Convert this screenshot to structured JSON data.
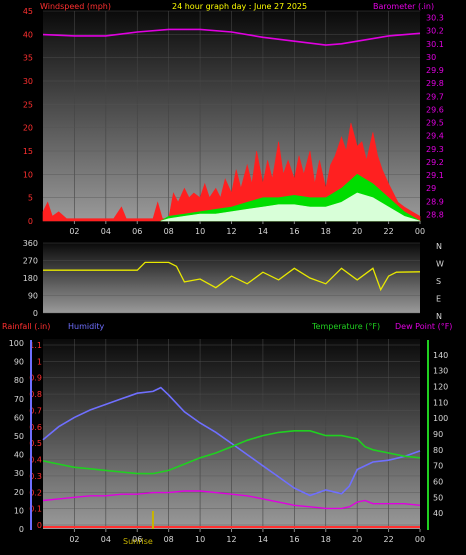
{
  "title": "24 hour graph day : June 27 2025",
  "colors": {
    "wind": "#ff2020",
    "gust": "#00dd00",
    "avg_light": "#d8ffd8",
    "barometer": "#e000e0",
    "direction": "#e8e800",
    "rain": "#ff3030",
    "humidity": "#6f6fff",
    "temperature": "#20d020",
    "dewpoint": "#e000e0",
    "tick_text": "#d8d8d8",
    "sunrise": "#c8b400"
  },
  "hour_ticks": [
    "02",
    "04",
    "06",
    "08",
    "10",
    "12",
    "14",
    "16",
    "18",
    "20",
    "22",
    "00"
  ],
  "sunrise_label": "Sunrise",
  "chart_data": [
    {
      "type": "area",
      "name": "wind-baro",
      "left_label": "Windspeed (mph)",
      "right_label": "Barometer (.in)",
      "left_ticks": [
        "0",
        "5",
        "10",
        "15",
        "20",
        "25",
        "30",
        "35",
        "40",
        "45"
      ],
      "right_ticks": [
        "28.8",
        "28.9",
        "29",
        "29.1",
        "29.2",
        "29.3",
        "29.4",
        "29.5",
        "29.6",
        "29.7",
        "29.8",
        "29.9",
        "30",
        "30.1",
        "30.2",
        "30.3"
      ],
      "ylim_left": [
        0,
        45
      ],
      "ylim_right": [
        28.75,
        30.35
      ],
      "xlim_hours": [
        0,
        24
      ],
      "wind_points": [
        [
          0,
          2
        ],
        [
          0.3,
          4
        ],
        [
          0.6,
          1
        ],
        [
          1,
          2
        ],
        [
          1.5,
          0.5
        ],
        [
          2,
          0.5
        ],
        [
          2.5,
          0.5
        ],
        [
          3,
          0.5
        ],
        [
          3.5,
          0.5
        ],
        [
          4,
          0.5
        ],
        [
          4.5,
          0.5
        ],
        [
          5,
          3
        ],
        [
          5.3,
          0.5
        ],
        [
          6,
          0.5
        ],
        [
          6.5,
          0.5
        ],
        [
          7,
          0.5
        ],
        [
          7.3,
          4
        ],
        [
          7.6,
          0.5
        ],
        [
          8,
          0.5
        ],
        [
          8.3,
          6
        ],
        [
          8.6,
          4
        ],
        [
          9,
          7
        ],
        [
          9.3,
          5
        ],
        [
          9.6,
          6
        ],
        [
          10,
          5
        ],
        [
          10.3,
          8
        ],
        [
          10.6,
          5
        ],
        [
          11,
          7
        ],
        [
          11.3,
          5
        ],
        [
          11.6,
          9
        ],
        [
          12,
          6
        ],
        [
          12.3,
          11
        ],
        [
          12.6,
          7
        ],
        [
          13,
          12
        ],
        [
          13.3,
          8
        ],
        [
          13.6,
          15
        ],
        [
          14,
          8
        ],
        [
          14.3,
          13
        ],
        [
          14.6,
          9
        ],
        [
          15,
          17
        ],
        [
          15.3,
          10
        ],
        [
          15.6,
          13
        ],
        [
          16,
          9
        ],
        [
          16.3,
          14
        ],
        [
          16.6,
          10
        ],
        [
          17,
          15
        ],
        [
          17.3,
          8
        ],
        [
          17.6,
          13
        ],
        [
          18,
          7
        ],
        [
          18.3,
          12
        ],
        [
          18.6,
          14
        ],
        [
          19,
          18
        ],
        [
          19.3,
          15
        ],
        [
          19.6,
          21
        ],
        [
          20,
          16
        ],
        [
          20.3,
          17
        ],
        [
          20.6,
          13
        ],
        [
          21,
          19
        ],
        [
          21.3,
          14
        ],
        [
          21.6,
          11
        ],
        [
          22,
          8
        ],
        [
          22.3,
          6
        ],
        [
          22.6,
          4
        ],
        [
          23,
          3
        ],
        [
          23.5,
          2
        ],
        [
          24,
          1
        ]
      ],
      "gust_points": [
        [
          7.5,
          0
        ],
        [
          8,
          1
        ],
        [
          9,
          1.5
        ],
        [
          10,
          2
        ],
        [
          11,
          2.5
        ],
        [
          12,
          3
        ],
        [
          13,
          4
        ],
        [
          14,
          5
        ],
        [
          15,
          5
        ],
        [
          16,
          5.5
        ],
        [
          17,
          5
        ],
        [
          18,
          5
        ],
        [
          19,
          7
        ],
        [
          20,
          10
        ],
        [
          20.5,
          9
        ],
        [
          21,
          8
        ],
        [
          22,
          5
        ],
        [
          23,
          2
        ],
        [
          24,
          0
        ]
      ],
      "avg_points": [
        [
          7.5,
          0
        ],
        [
          8,
          0.5
        ],
        [
          9,
          1
        ],
        [
          10,
          1.5
        ],
        [
          11,
          1.5
        ],
        [
          12,
          2
        ],
        [
          13,
          2.5
        ],
        [
          14,
          3
        ],
        [
          15,
          3.5
        ],
        [
          16,
          3.5
        ],
        [
          17,
          3
        ],
        [
          18,
          3
        ],
        [
          19,
          4
        ],
        [
          20,
          6
        ],
        [
          21,
          5
        ],
        [
          22,
          3
        ],
        [
          23,
          1
        ],
        [
          24,
          0
        ]
      ],
      "baro_points": [
        [
          0,
          30.17
        ],
        [
          2,
          30.16
        ],
        [
          4,
          30.16
        ],
        [
          6,
          30.19
        ],
        [
          8,
          30.21
        ],
        [
          10,
          30.21
        ],
        [
          12,
          30.19
        ],
        [
          14,
          30.15
        ],
        [
          16,
          30.12
        ],
        [
          18,
          30.09
        ],
        [
          19,
          30.1
        ],
        [
          20,
          30.12
        ],
        [
          22,
          30.16
        ],
        [
          24,
          30.18
        ]
      ]
    },
    {
      "type": "line",
      "name": "wind-direction",
      "left_ticks": [
        "0",
        "90",
        "180",
        "270",
        "360"
      ],
      "right_ticks": [
        "N",
        "W",
        "S",
        "E",
        "N"
      ],
      "ylim": [
        0,
        360
      ],
      "dir_points": [
        [
          0,
          220
        ],
        [
          6,
          220
        ],
        [
          6.5,
          260
        ],
        [
          8,
          260
        ],
        [
          8.5,
          240
        ],
        [
          9,
          160
        ],
        [
          10,
          175
        ],
        [
          11,
          130
        ],
        [
          12,
          190
        ],
        [
          13,
          150
        ],
        [
          14,
          210
        ],
        [
          15,
          170
        ],
        [
          16,
          230
        ],
        [
          17,
          180
        ],
        [
          18,
          150
        ],
        [
          19,
          230
        ],
        [
          20,
          170
        ],
        [
          21,
          230
        ],
        [
          21.5,
          120
        ],
        [
          22,
          190
        ],
        [
          22.5,
          210
        ],
        [
          24,
          212
        ]
      ]
    },
    {
      "type": "line",
      "name": "rain-humidity-temp",
      "rain_label": "Rainfall (.in)",
      "humidity_label": "Humidity",
      "temp_label": "Temperature (°F)",
      "dew_label": "Dew Point (°F)",
      "rain_ticks": [
        "0",
        "0.1",
        "0.2",
        "0.3",
        "0.4",
        "0.5",
        "0.6",
        "0.7",
        "0.8",
        "0.9",
        "1",
        "1.1"
      ],
      "humidity_ticks": [
        "0",
        "10",
        "20",
        "30",
        "40",
        "50",
        "60",
        "70",
        "80",
        "90",
        "100"
      ],
      "temp_ticks": [
        "40",
        "50",
        "60",
        "70",
        "80",
        "90",
        "100",
        "110",
        "120",
        "130",
        "140"
      ],
      "ylim_humidity": [
        0,
        100
      ],
      "ylim_temp": [
        30,
        150
      ],
      "humidity_points": [
        [
          0,
          48
        ],
        [
          1,
          55
        ],
        [
          2,
          60
        ],
        [
          3,
          64
        ],
        [
          4,
          67
        ],
        [
          5,
          70
        ],
        [
          6,
          73
        ],
        [
          7,
          74
        ],
        [
          7.5,
          76
        ],
        [
          8,
          72
        ],
        [
          9,
          63
        ],
        [
          10,
          57
        ],
        [
          11,
          52
        ],
        [
          12,
          46
        ],
        [
          13,
          40
        ],
        [
          14,
          34
        ],
        [
          15,
          28
        ],
        [
          16,
          22
        ],
        [
          17,
          18
        ],
        [
          18,
          21
        ],
        [
          19,
          19
        ],
        [
          19.5,
          23
        ],
        [
          20,
          32
        ],
        [
          21,
          36
        ],
        [
          22,
          37
        ],
        [
          23,
          39
        ],
        [
          24,
          42
        ]
      ],
      "temp_points": [
        [
          0,
          73
        ],
        [
          1,
          71
        ],
        [
          2,
          69
        ],
        [
          3,
          68
        ],
        [
          4,
          67
        ],
        [
          5,
          66
        ],
        [
          6,
          65
        ],
        [
          7,
          65
        ],
        [
          8,
          67
        ],
        [
          9,
          71
        ],
        [
          10,
          75
        ],
        [
          11,
          78
        ],
        [
          12,
          82
        ],
        [
          13,
          86
        ],
        [
          14,
          89
        ],
        [
          15,
          91
        ],
        [
          16,
          92
        ],
        [
          17,
          92
        ],
        [
          18,
          89
        ],
        [
          19,
          89
        ],
        [
          20,
          87
        ],
        [
          20.5,
          82
        ],
        [
          21,
          80
        ],
        [
          22,
          78
        ],
        [
          23,
          76
        ],
        [
          24,
          75
        ]
      ],
      "dew_points": [
        [
          0,
          48
        ],
        [
          1,
          49
        ],
        [
          2,
          50
        ],
        [
          3,
          51
        ],
        [
          4,
          51
        ],
        [
          5,
          52
        ],
        [
          6,
          52
        ],
        [
          7,
          53
        ],
        [
          8,
          53
        ],
        [
          9,
          54
        ],
        [
          10,
          54
        ],
        [
          11,
          53
        ],
        [
          12,
          52
        ],
        [
          13,
          51
        ],
        [
          14,
          49
        ],
        [
          15,
          47
        ],
        [
          16,
          45
        ],
        [
          17,
          44
        ],
        [
          18,
          43
        ],
        [
          19,
          43
        ],
        [
          19.5,
          44
        ],
        [
          20,
          47
        ],
        [
          20.5,
          48
        ],
        [
          21,
          46
        ],
        [
          22,
          46
        ],
        [
          23,
          46
        ],
        [
          24,
          45
        ]
      ],
      "rain_points": [
        [
          0,
          0
        ],
        [
          24,
          0
        ]
      ],
      "sunrise_hour": 7
    }
  ]
}
